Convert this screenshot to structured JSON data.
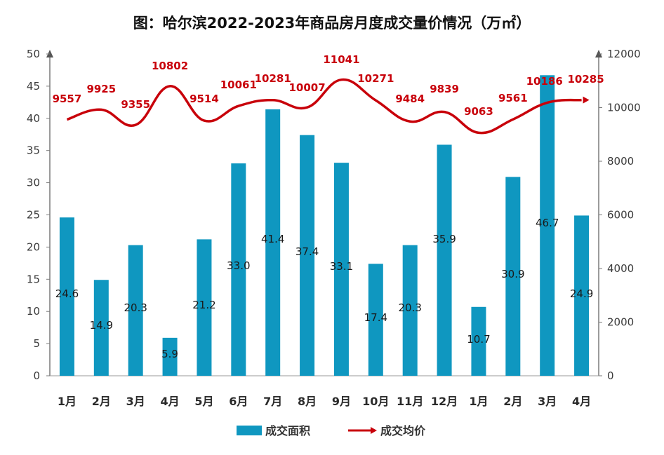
{
  "chart_data": {
    "type": "bar",
    "title": "图：哈尔滨2022-2023年商品房月度成交量价情况（万㎡）",
    "categories": [
      "1月",
      "2月",
      "3月",
      "4月",
      "5月",
      "6月",
      "7月",
      "8月",
      "9月",
      "10月",
      "11月",
      "12月",
      "1月",
      "2月",
      "3月",
      "4月"
    ],
    "series": [
      {
        "name": "成交面积",
        "type": "bar",
        "axis": "left",
        "color": "#0f97c0",
        "values": [
          24.6,
          14.9,
          20.3,
          5.9,
          21.2,
          33.0,
          41.4,
          37.4,
          33.1,
          17.4,
          20.3,
          35.9,
          10.7,
          30.9,
          46.7,
          24.9
        ],
        "labels": [
          "24.6",
          "14.9",
          "20.3",
          "5.9",
          "21.2",
          "33.0",
          "41.4",
          "37.4",
          "33.1",
          "17.4",
          "20.3",
          "35.9",
          "10.7",
          "30.9",
          "46.7",
          "24.9"
        ]
      },
      {
        "name": "成交均价",
        "type": "line",
        "axis": "right",
        "color": "#c8000a",
        "values": [
          9557,
          9925,
          9355,
          10802,
          9514,
          10061,
          10281,
          10007,
          11041,
          10271,
          9484,
          9839,
          9063,
          9561,
          10186,
          10285
        ],
        "labels": [
          "9557",
          "9925",
          "9355",
          "10802",
          "9514",
          "10061",
          "10281",
          "10007",
          "11041",
          "10271",
          "9484",
          "9839",
          "9063",
          "9561",
          "10186",
          "10285"
        ]
      }
    ],
    "y_left": {
      "min": 0,
      "max": 50,
      "ticks": [
        "0",
        "5",
        "10",
        "15",
        "20",
        "25",
        "30",
        "35",
        "40",
        "45",
        "50"
      ]
    },
    "y_right": {
      "min": 0,
      "max": 12000,
      "ticks": [
        "0",
        "2000",
        "4000",
        "6000",
        "8000",
        "10000",
        "12000"
      ]
    },
    "legend": {
      "position": "bottom",
      "items": [
        "成交面积",
        "成交均价"
      ]
    },
    "grid": false
  }
}
